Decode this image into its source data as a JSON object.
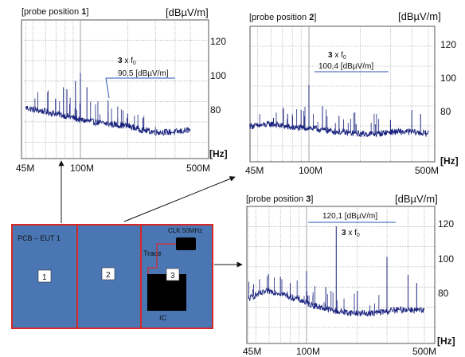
{
  "charts": [
    {
      "id": "p1",
      "title_prefix": "[probe position ",
      "title_num": "1",
      "title_suffix": "]",
      "yunit": "[dBµV/m]",
      "xunit": "[Hz]",
      "xticks": [
        "45M",
        "100M",
        "500M"
      ],
      "yticks": [
        "120",
        "100",
        "80"
      ],
      "annotation_factor": "3",
      "annotation_rest": " x f",
      "annotation_sub": "0",
      "annotation_value": "90,5 [dBµV/m]"
    },
    {
      "id": "p2",
      "title_prefix": "[probe position ",
      "title_num": "2",
      "title_suffix": "]",
      "yunit": "[dBµV/m]",
      "xunit": "[Hz]",
      "xticks": [
        "45M",
        "100M",
        "500M"
      ],
      "yticks": [
        "120",
        "100",
        "80"
      ],
      "annotation_factor": "3",
      "annotation_rest": " x f",
      "annotation_sub": "0",
      "annotation_value": "100,4 [dBµV/m]"
    },
    {
      "id": "p3",
      "title_prefix": "[probe position ",
      "title_num": "3",
      "title_suffix": "]",
      "yunit": "[dBµV/m]",
      "xunit": "[Hz]",
      "xticks": [
        "45M",
        "100M",
        "500M"
      ],
      "yticks": [
        "120",
        "100",
        "80"
      ],
      "annotation_factor": "3",
      "annotation_rest": " x f",
      "annotation_sub": "0",
      "annotation_value": "120,1 [dBµV/m]"
    }
  ],
  "pcb": {
    "board_label": "PCB – EUT 1",
    "zones": [
      "1",
      "2",
      "3"
    ],
    "clk_label": "CLK 50MHz",
    "trace_label": "Trace",
    "ic_label": "IC"
  },
  "colors": {
    "trace": "#1a237e",
    "board": "#4a77b4",
    "board_border": "#d62828",
    "grid": "#9a9a9a",
    "annotation": "#2f55b8"
  },
  "chart_data": [
    {
      "type": "line",
      "title": "[probe position 1]",
      "xlabel": "[Hz]",
      "ylabel": "[dBµV/m]",
      "xscale": "log",
      "xlim": [
        45,
        500
      ],
      "ylim": [
        62,
        130
      ],
      "grid": true,
      "series": [
        {
          "x": [
            45,
            50,
            60,
            70,
            80,
            90,
            100,
            120,
            150,
            200,
            250,
            300,
            400,
            500
          ],
          "y": [
            87,
            86,
            85,
            84,
            83,
            82,
            81,
            80,
            79,
            78,
            76,
            75,
            75,
            76
          ]
        }
      ],
      "peaks": [
        [
          62,
          92
        ],
        [
          78,
          97
        ],
        [
          82,
          96
        ],
        [
          93,
          100
        ],
        [
          100,
          104
        ],
        [
          110,
          97
        ],
        [
          150,
          90.5
        ],
        [
          200,
          84
        ],
        [
          250,
          82
        ]
      ],
      "annotation": {
        "text": "3 x f0",
        "value": "90,5 [dBµV/m]",
        "x": 150,
        "y": 90.5
      }
    },
    {
      "type": "line",
      "title": "[probe position 2]",
      "xlabel": "[Hz]",
      "ylabel": "[dBµV/m]",
      "xscale": "log",
      "xlim": [
        45,
        500
      ],
      "ylim": [
        62,
        130
      ],
      "grid": true,
      "series": [
        {
          "x": [
            45,
            50,
            60,
            70,
            80,
            90,
            100,
            120,
            150,
            200,
            250,
            300,
            400,
            500
          ],
          "y": [
            80,
            80,
            81,
            80,
            79,
            79,
            79,
            78,
            77,
            76,
            76,
            77,
            77,
            76
          ]
        }
      ],
      "peaks": [
        [
          62,
          84
        ],
        [
          75,
          86
        ],
        [
          90,
          88
        ],
        [
          100,
          100.4
        ],
        [
          120,
          90
        ],
        [
          150,
          85
        ],
        [
          300,
          83
        ],
        [
          400,
          88
        ],
        [
          450,
          86
        ]
      ],
      "annotation": {
        "text": "3 x f0",
        "value": "100,4 [dBµV/m]",
        "x": 100,
        "y": 100.4
      }
    },
    {
      "type": "line",
      "title": "[probe position 3]",
      "xlabel": "[Hz]",
      "ylabel": "[dBµV/m]",
      "xscale": "log",
      "xlim": [
        45,
        500
      ],
      "ylim": [
        62,
        130
      ],
      "grid": true,
      "series": [
        {
          "x": [
            45,
            50,
            60,
            70,
            80,
            90,
            100,
            120,
            150,
            200,
            250,
            300,
            400,
            500
          ],
          "y": [
            84,
            86,
            88,
            87,
            85,
            84,
            82,
            80,
            78,
            77,
            77,
            78,
            79,
            78
          ]
        }
      ],
      "peaks": [
        [
          70,
          95
        ],
        [
          80,
          92
        ],
        [
          100,
          98
        ],
        [
          130,
          90
        ],
        [
          150,
          120.1
        ],
        [
          200,
          88
        ],
        [
          300,
          105
        ],
        [
          400,
          96
        ],
        [
          450,
          92
        ]
      ],
      "annotation": {
        "text": "3 x f0",
        "value": "120,1 [dBµV/m]",
        "x": 150,
        "y": 120.1
      }
    }
  ]
}
